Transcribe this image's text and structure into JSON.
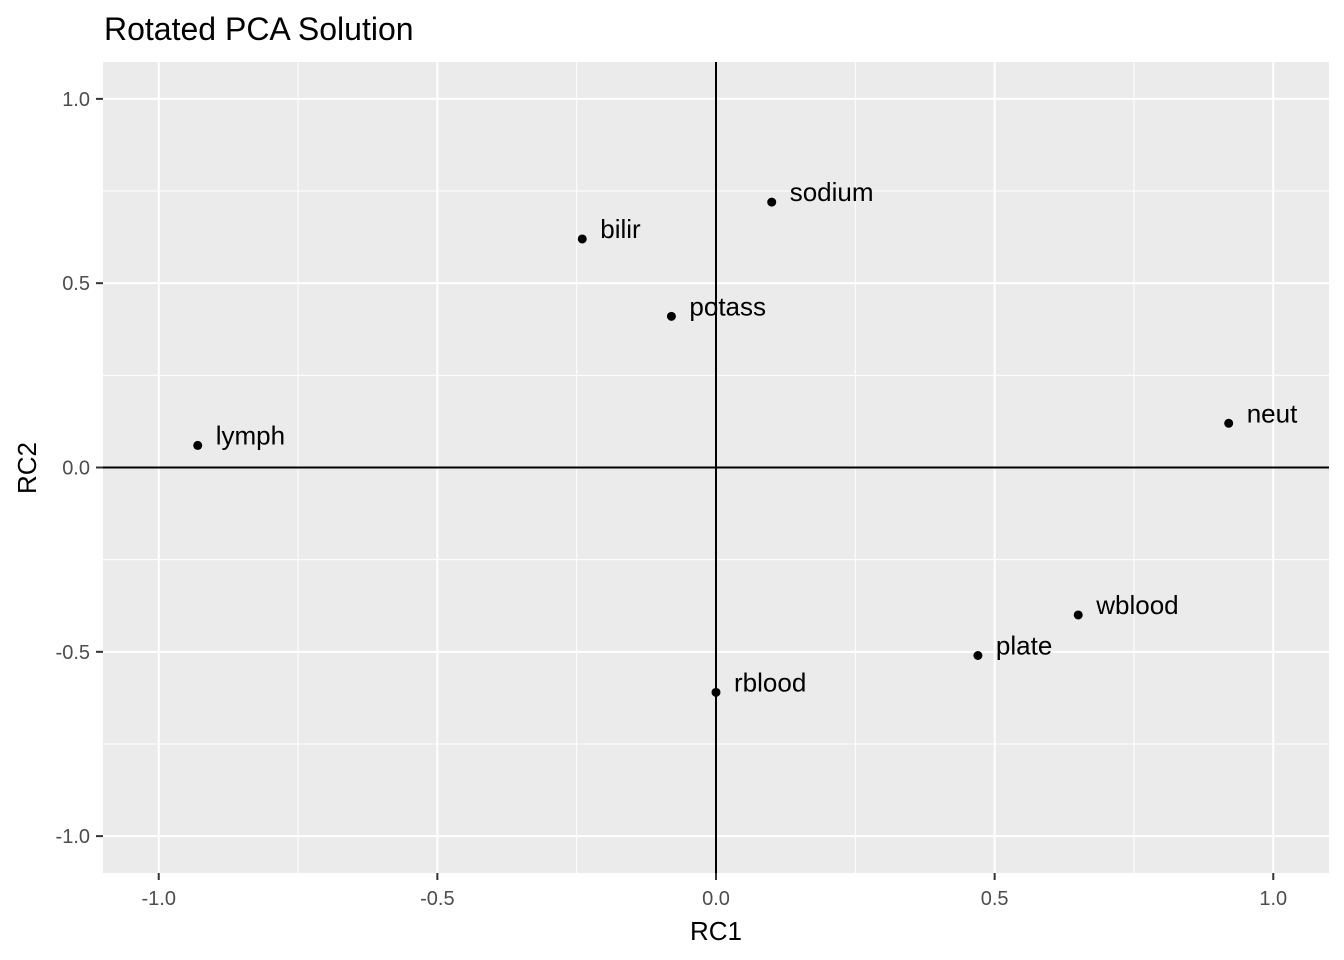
{
  "chart_data": {
    "type": "scatter",
    "title": "Rotated PCA Solution",
    "xlabel": "RC1",
    "ylabel": "RC2",
    "xlim": [
      -1.1,
      1.1
    ],
    "ylim": [
      -1.1,
      1.1
    ],
    "xticks": [
      -1.0,
      -0.5,
      0.0,
      0.5,
      1.0
    ],
    "yticks": [
      -1.0,
      -0.5,
      0.0,
      0.5,
      1.0
    ],
    "xtick_labels": [
      "-1.0",
      "-0.5",
      "0.0",
      "0.5",
      "1.0"
    ],
    "ytick_labels": [
      "-1.0",
      "-0.5",
      "0.0",
      "0.5",
      "1.0"
    ],
    "reference_lines": {
      "x": 0,
      "y": 0
    },
    "grid": true,
    "background": "#ebebeb",
    "points": [
      {
        "label": "sodium",
        "x": 0.1,
        "y": 0.72
      },
      {
        "label": "bilir",
        "x": -0.24,
        "y": 0.62
      },
      {
        "label": "potass",
        "x": -0.08,
        "y": 0.41
      },
      {
        "label": "lymph",
        "x": -0.93,
        "y": 0.06
      },
      {
        "label": "neut",
        "x": 0.92,
        "y": 0.12
      },
      {
        "label": "wblood",
        "x": 0.65,
        "y": -0.4
      },
      {
        "label": "plate",
        "x": 0.47,
        "y": -0.51
      },
      {
        "label": "rblood",
        "x": 0.0,
        "y": -0.61
      }
    ]
  }
}
